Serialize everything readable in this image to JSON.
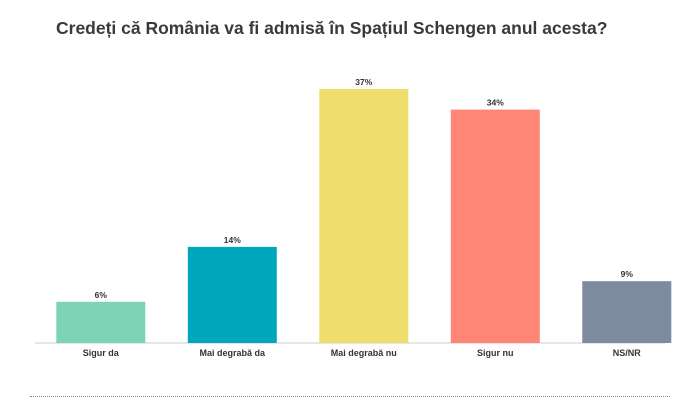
{
  "title": "Credeți că România va fi admisă în Spațiul Schengen anul acesta?",
  "chart_data": {
    "type": "bar",
    "categories": [
      "Sigur da",
      "Mai degrabă da",
      "Mai degrabă nu",
      "Sigur nu",
      "NS/NR"
    ],
    "values": [
      6,
      14,
      37,
      34,
      9
    ],
    "value_labels": [
      "6%",
      "14%",
      "37%",
      "34%",
      "9%"
    ],
    "colors": [
      "#7dd3b6",
      "#00a6bb",
      "#efdd6d",
      "#ff8576",
      "#7d8b9e"
    ],
    "unit": "%",
    "ylim": [
      0,
      37
    ],
    "grid": false,
    "legend": "none"
  }
}
